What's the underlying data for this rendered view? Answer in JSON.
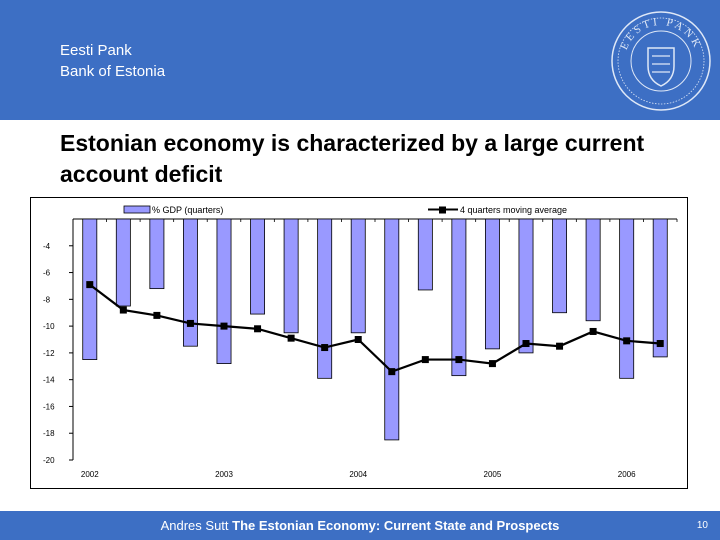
{
  "header": {
    "org_line1": "Eesti Pank",
    "org_line2": "Bank of Estonia",
    "seal_text": "EESTI PANK",
    "brand_color": "#3d6fc4"
  },
  "slide": {
    "title": "Estonian economy is characterized by a large current account deficit"
  },
  "chart_data": {
    "type": "bar+line",
    "legend": {
      "bar_label": "% GDP (quarters)",
      "line_label": "4 quarters moving average",
      "placement": "top"
    },
    "ylim": [
      -20,
      -2
    ],
    "yticks": [
      -4,
      -6,
      -8,
      -10,
      -12,
      -14,
      -16,
      -18,
      -20
    ],
    "year_labels": [
      "2002",
      "2003",
      "2004",
      "2005",
      "2006"
    ],
    "year_start_quarter_index": [
      0,
      4,
      8,
      12,
      16
    ],
    "bar_color": "#9999ff",
    "line_color": "#000000",
    "series": [
      {
        "name": "% GDP (quarters)",
        "kind": "bar",
        "values": [
          -12.5,
          -8.5,
          -7.2,
          -11.5,
          -12.8,
          -9.1,
          -10.5,
          -13.9,
          -10.5,
          -18.5,
          -7.3,
          -13.7,
          -11.7,
          -12.0,
          -9.0,
          -9.6,
          -13.9,
          -12.3
        ]
      },
      {
        "name": "4 quarters moving average",
        "kind": "line",
        "values": [
          -6.9,
          -8.8,
          -9.2,
          -9.8,
          -10.0,
          -10.2,
          -10.9,
          -11.6,
          -11.0,
          -13.4,
          -12.5,
          -12.5,
          -12.8,
          -11.3,
          -11.5,
          -10.4,
          -11.1,
          -11.3
        ]
      }
    ]
  },
  "footer": {
    "author": "Andres Sutt",
    "talk_title": "The Estonian Economy: Current State and Prospects",
    "page_number": "10"
  }
}
